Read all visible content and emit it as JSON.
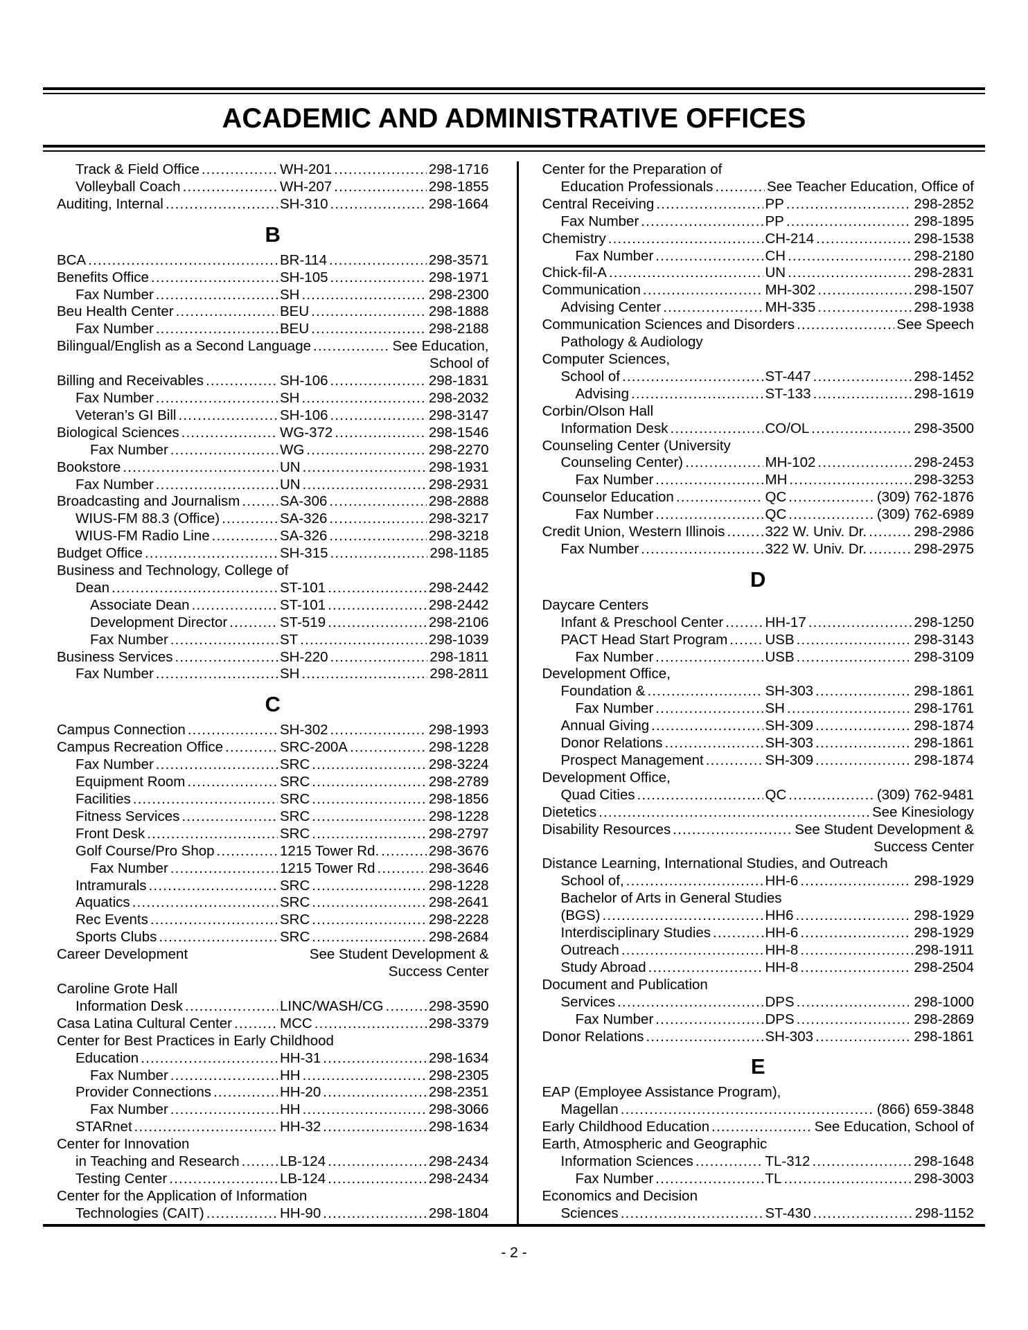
{
  "header": {
    "title": "ACADEMIC AND ADMINISTRATIVE OFFICES"
  },
  "footer": {
    "page_number": "- 2 -"
  },
  "columns": {
    "left": [
      {
        "type": "entry",
        "indent": 1,
        "name": "Track & Field Office",
        "loc": "WH-201",
        "phone": "298-1716"
      },
      {
        "type": "entry",
        "indent": 1,
        "name": "Volleyball Coach",
        "loc": "WH-207",
        "phone": "298-1855"
      },
      {
        "type": "entry",
        "indent": 0,
        "name": "Auditing, Internal",
        "loc": "SH-310",
        "phone": "298-1664"
      },
      {
        "type": "heading",
        "name": "B"
      },
      {
        "type": "entry",
        "indent": 0,
        "name": "BCA",
        "loc": "BR-114",
        "phone": "298-3571"
      },
      {
        "type": "entry",
        "indent": 0,
        "name": "Benefits Office",
        "loc": "SH-105",
        "phone": "298-1971"
      },
      {
        "type": "entry",
        "indent": 1,
        "name": "Fax Number",
        "loc": "SH",
        "phone": "298-2300"
      },
      {
        "type": "entry",
        "indent": 0,
        "name": "Beu Health Center",
        "loc": "BEU",
        "phone": "298-1888"
      },
      {
        "type": "entry",
        "indent": 1,
        "name": "Fax Number",
        "loc": "BEU",
        "phone": "298-2188"
      },
      {
        "type": "see",
        "indent": 0,
        "name": "Bilingual/English as a Second Language",
        "ref": "See Education,"
      },
      {
        "type": "right",
        "name": "School of"
      },
      {
        "type": "entry",
        "indent": 0,
        "name": "Billing and Receivables",
        "loc": "SH-106",
        "phone": "298-1831"
      },
      {
        "type": "entry",
        "indent": 1,
        "name": "Fax Number",
        "loc": "SH",
        "phone": "298-2032"
      },
      {
        "type": "entry",
        "indent": 1,
        "name": "Veteran’s GI Bill",
        "loc": "SH-106",
        "phone": "298-3147"
      },
      {
        "type": "entry",
        "indent": 0,
        "name": "Biological Sciences",
        "loc": "WG-372",
        "phone": "298-1546"
      },
      {
        "type": "entry",
        "indent": 2,
        "name": "Fax Number",
        "loc": "WG",
        "phone": "298-2270"
      },
      {
        "type": "entry",
        "indent": 0,
        "name": "Bookstore",
        "loc": "UN",
        "phone": "298-1931"
      },
      {
        "type": "entry",
        "indent": 1,
        "name": "Fax Number",
        "loc": "UN",
        "phone": "298-2931"
      },
      {
        "type": "entry",
        "indent": 0,
        "name": "Broadcasting and Journalism",
        "loc": "SA-306",
        "phone": "298-2888"
      },
      {
        "type": "entry",
        "indent": 1,
        "name": "WIUS-FM 88.3 (Office)",
        "loc": "SA-326",
        "phone": "298-3217"
      },
      {
        "type": "entry",
        "indent": 1,
        "name": "WIUS-FM Radio Line",
        "loc": "SA-326",
        "phone": "298-3218"
      },
      {
        "type": "entry",
        "indent": 0,
        "name": "Budget Office",
        "loc": "SH-315",
        "phone": "298-1185"
      },
      {
        "type": "text",
        "indent": 0,
        "name": "Business and Technology, College of"
      },
      {
        "type": "entry",
        "indent": 1,
        "name": "Dean",
        "loc": "ST-101",
        "phone": "298-2442"
      },
      {
        "type": "entry",
        "indent": 2,
        "name": "Associate Dean",
        "loc": "ST-101",
        "phone": "298-2442"
      },
      {
        "type": "entry",
        "indent": 2,
        "name": "Development Director",
        "loc": "ST-519",
        "phone": "298-2106"
      },
      {
        "type": "entry",
        "indent": 2,
        "name": "Fax Number",
        "loc": "ST",
        "phone": "298-1039"
      },
      {
        "type": "entry",
        "indent": 0,
        "name": "Business Services",
        "loc": "SH-220",
        "phone": "298-1811"
      },
      {
        "type": "entry",
        "indent": 1,
        "name": "Fax Number",
        "loc": "SH",
        "phone": "298-2811"
      },
      {
        "type": "heading",
        "name": "C"
      },
      {
        "type": "entry",
        "indent": 0,
        "name": "Campus Connection",
        "loc": "SH-302",
        "phone": "298-1993"
      },
      {
        "type": "entry",
        "indent": 0,
        "name": "Campus Recreation Office",
        "loc": "SRC-200A",
        "phone": "298-1228"
      },
      {
        "type": "entry",
        "indent": 1,
        "name": "Fax Number",
        "loc": "SRC",
        "phone": "298-3224"
      },
      {
        "type": "entry",
        "indent": 1,
        "name": "Equipment Room",
        "loc": "SRC",
        "phone": "298-2789"
      },
      {
        "type": "entry",
        "indent": 1,
        "name": "Facilities",
        "loc": "SRC",
        "phone": "298-1856"
      },
      {
        "type": "entry",
        "indent": 1,
        "name": "Fitness Services",
        "loc": "SRC",
        "phone": "298-1228"
      },
      {
        "type": "entry",
        "indent": 1,
        "name": "Front Desk",
        "loc": "SRC",
        "phone": "298-2797"
      },
      {
        "type": "entry",
        "indent": 1,
        "name": "Golf Course/Pro Shop",
        "loc": "1215 Tower Rd.",
        "phone": "298-3676"
      },
      {
        "type": "entry",
        "indent": 2,
        "name": "Fax Number",
        "loc": "1215 Tower Rd",
        "phone": "298-3646"
      },
      {
        "type": "entry",
        "indent": 1,
        "name": "Intramurals",
        "loc": "SRC",
        "phone": "298-1228"
      },
      {
        "type": "entry",
        "indent": 1,
        "name": "Aquatics",
        "loc": "SRC",
        "phone": "298-2641"
      },
      {
        "type": "entry",
        "indent": 1,
        "name": "Rec Events",
        "loc": "SRC",
        "phone": "298-2228"
      },
      {
        "type": "entry",
        "indent": 1,
        "name": "Sports Clubs",
        "loc": "SRC",
        "phone": "298-2684"
      },
      {
        "type": "see-nodots",
        "indent": 0,
        "name": "Career Development",
        "ref": "See Student Development &"
      },
      {
        "type": "right",
        "name": "Success Center"
      },
      {
        "type": "text",
        "indent": 0,
        "name": "Caroline Grote Hall"
      },
      {
        "type": "entry",
        "indent": 1,
        "name": "Information Desk",
        "loc": "LINC/WASH/CG",
        "phone": "298-3590"
      },
      {
        "type": "entry",
        "indent": 0,
        "name": "Casa Latina Cultural Center",
        "loc": "MCC",
        "phone": "298-3379"
      },
      {
        "type": "text",
        "indent": 0,
        "name": "Center for Best Practices in Early Childhood"
      },
      {
        "type": "entry",
        "indent": 1,
        "name": "Education",
        "loc": "HH-31",
        "phone": "298-1634"
      },
      {
        "type": "entry",
        "indent": 2,
        "name": "Fax Number",
        "loc": "HH",
        "phone": "298-2305"
      },
      {
        "type": "entry",
        "indent": 1,
        "name": "Provider Connections",
        "loc": "HH-20",
        "phone": "298-2351"
      },
      {
        "type": "entry",
        "indent": 2,
        "name": "Fax Number",
        "loc": "HH",
        "phone": "298-3066"
      },
      {
        "type": "entry",
        "indent": 1,
        "name": "STARnet",
        "loc": "HH-32",
        "phone": "298-1634"
      },
      {
        "type": "text",
        "indent": 0,
        "name": "Center for Innovation"
      },
      {
        "type": "entry",
        "indent": 1,
        "name": "in Teaching and Research",
        "loc": "LB-124",
        "phone": "298-2434"
      },
      {
        "type": "entry",
        "indent": 1,
        "name": "Testing Center",
        "loc": "LB-124",
        "phone": "298-2434"
      },
      {
        "type": "text",
        "indent": 0,
        "name": "Center for the Application of Information"
      },
      {
        "type": "entry",
        "indent": 1,
        "name": "Technologies (CAIT)",
        "loc": "HH-90",
        "phone": "298-1804"
      }
    ],
    "right": [
      {
        "type": "text",
        "indent": 0,
        "name": "Center for the Preparation of"
      },
      {
        "type": "see",
        "indent": 1,
        "name": "Education Professionals",
        "ref": "See Teacher Education, Office of"
      },
      {
        "type": "entry",
        "indent": 0,
        "name": "Central Receiving",
        "loc": "PP",
        "phone": "298-2852"
      },
      {
        "type": "entry",
        "indent": 1,
        "name": "Fax Number",
        "loc": "PP",
        "phone": "298-1895"
      },
      {
        "type": "entry",
        "indent": 0,
        "name": "Chemistry",
        "loc": "CH-214",
        "phone": "298-1538"
      },
      {
        "type": "entry",
        "indent": 2,
        "name": "Fax Number",
        "loc": "CH",
        "phone": "298-2180"
      },
      {
        "type": "entry",
        "indent": 0,
        "name": "Chick-fil-A",
        "loc": "UN",
        "phone": "298-2831"
      },
      {
        "type": "entry",
        "indent": 0,
        "name": "Communication",
        "loc": "MH-302",
        "phone": "298-1507"
      },
      {
        "type": "entry",
        "indent": 1,
        "name": "Advising Center",
        "loc": "MH-335",
        "phone": "298-1938"
      },
      {
        "type": "see",
        "indent": 0,
        "name": "Communication Sciences and Disorders",
        "ref": "See Speech"
      },
      {
        "type": "text",
        "indent": 1,
        "name": "Pathology & Audiology"
      },
      {
        "type": "text",
        "indent": 0,
        "name": "Computer Sciences,"
      },
      {
        "type": "entry",
        "indent": 1,
        "name": "School of",
        "loc": "ST-447",
        "phone": "298-1452"
      },
      {
        "type": "entry",
        "indent": 2,
        "name": "Advising",
        "loc": "ST-133",
        "phone": "298-1619"
      },
      {
        "type": "text",
        "indent": 0,
        "name": "Corbin/Olson Hall"
      },
      {
        "type": "entry",
        "indent": 1,
        "name": "Information Desk",
        "loc": "CO/OL",
        "phone": "298-3500"
      },
      {
        "type": "text",
        "indent": 0,
        "name": "Counseling Center (University"
      },
      {
        "type": "entry",
        "indent": 1,
        "name": "Counseling Center)",
        "loc": "MH-102",
        "phone": "298-2453"
      },
      {
        "type": "entry",
        "indent": 2,
        "name": "Fax Number",
        "loc": "MH",
        "phone": "298-3253"
      },
      {
        "type": "entry",
        "indent": 0,
        "name": "Counselor Education",
        "loc": "QC",
        "phone": "(309) 762-1876"
      },
      {
        "type": "entry",
        "indent": 2,
        "name": "Fax Number",
        "loc": "QC",
        "phone": "(309) 762-6989"
      },
      {
        "type": "entry",
        "indent": 0,
        "name": "Credit Union, Western Illinois",
        "loc": "322 W. Univ. Dr.",
        "phone": "298-2986"
      },
      {
        "type": "entry",
        "indent": 1,
        "name": "Fax Number",
        "loc": "322 W. Univ. Dr.",
        "phone": "298-2975"
      },
      {
        "type": "heading",
        "name": "D"
      },
      {
        "type": "text",
        "indent": 0,
        "name": "Daycare Centers"
      },
      {
        "type": "entry",
        "indent": 1,
        "name": "Infant & Preschool Center",
        "loc": "HH-17",
        "phone": "298-1250"
      },
      {
        "type": "entry",
        "indent": 1,
        "name": "PACT Head Start Program",
        "loc": "USB",
        "phone": "298-3143"
      },
      {
        "type": "entry",
        "indent": 2,
        "name": "Fax Number",
        "loc": "USB",
        "phone": "298-3109"
      },
      {
        "type": "text",
        "indent": 0,
        "name": "Development Office,"
      },
      {
        "type": "entry",
        "indent": 1,
        "name": "Foundation &",
        "loc": "SH-303",
        "phone": "298-1861"
      },
      {
        "type": "entry",
        "indent": 2,
        "name": "Fax Number",
        "loc": "SH",
        "phone": "298-1761"
      },
      {
        "type": "entry",
        "indent": 1,
        "name": "Annual Giving",
        "loc": "SH-309",
        "phone": "298-1874"
      },
      {
        "type": "entry",
        "indent": 1,
        "name": "Donor Relations",
        "loc": "SH-303",
        "phone": "298-1861"
      },
      {
        "type": "entry",
        "indent": 1,
        "name": "Prospect Management",
        "loc": "SH-309",
        "phone": "298-1874"
      },
      {
        "type": "text",
        "indent": 0,
        "name": "Development Office,"
      },
      {
        "type": "entry",
        "indent": 1,
        "name": "Quad Cities",
        "loc": "QC",
        "phone": "(309) 762-9481"
      },
      {
        "type": "see",
        "indent": 0,
        "name": "Dietetics",
        "ref": "See Kinesiology"
      },
      {
        "type": "see",
        "indent": 0,
        "name": "Disability Resources",
        "ref": "See Student Development &"
      },
      {
        "type": "right",
        "name": "Success Center"
      },
      {
        "type": "text",
        "indent": 0,
        "name": "Distance Learning, International Studies, and Outreach"
      },
      {
        "type": "entry",
        "indent": 1,
        "name": "School of,",
        "loc": "HH-6",
        "phone": "298-1929"
      },
      {
        "type": "text",
        "indent": 1,
        "name": "Bachelor of Arts in General Studies"
      },
      {
        "type": "entry",
        "indent": 1,
        "name": "(BGS)",
        "loc": "HH6",
        "phone": "298-1929"
      },
      {
        "type": "entry",
        "indent": 1,
        "name": "Interdisciplinary Studies",
        "loc": "HH-6",
        "phone": "298-1929"
      },
      {
        "type": "entry",
        "indent": 1,
        "name": "Outreach",
        "loc": "HH-8",
        "phone": "298-1911"
      },
      {
        "type": "entry",
        "indent": 1,
        "name": "Study Abroad",
        "loc": "HH-8",
        "phone": "298-2504"
      },
      {
        "type": "text",
        "indent": 0,
        "name": "Document and Publication"
      },
      {
        "type": "entry",
        "indent": 1,
        "name": "Services",
        "loc": "DPS",
        "phone": "298-1000"
      },
      {
        "type": "entry",
        "indent": 2,
        "name": "Fax Number",
        "loc": "DPS",
        "phone": "298-2869"
      },
      {
        "type": "entry",
        "indent": 0,
        "name": "Donor Relations",
        "loc": "SH-303",
        "phone": "298-1861"
      },
      {
        "type": "heading",
        "name": "E"
      },
      {
        "type": "text",
        "indent": 0,
        "name": "EAP (Employee Assistance Program),"
      },
      {
        "type": "entry-nl",
        "indent": 1,
        "name": "Magellan",
        "phone": "(866) 659-3848"
      },
      {
        "type": "see",
        "indent": 0,
        "name": "Early Childhood Education",
        "ref": "See Education, School of"
      },
      {
        "type": "text",
        "indent": 0,
        "name": "Earth, Atmospheric and Geographic"
      },
      {
        "type": "entry",
        "indent": 1,
        "name": "Information Sciences",
        "loc": "TL-312",
        "phone": "298-1648"
      },
      {
        "type": "entry",
        "indent": 2,
        "name": "Fax Number",
        "loc": "TL",
        "phone": "298-3003"
      },
      {
        "type": "text",
        "indent": 0,
        "name": "Economics and Decision"
      },
      {
        "type": "entry",
        "indent": 1,
        "name": "Sciences",
        "loc": "ST-430",
        "phone": "298-1152"
      }
    ]
  }
}
